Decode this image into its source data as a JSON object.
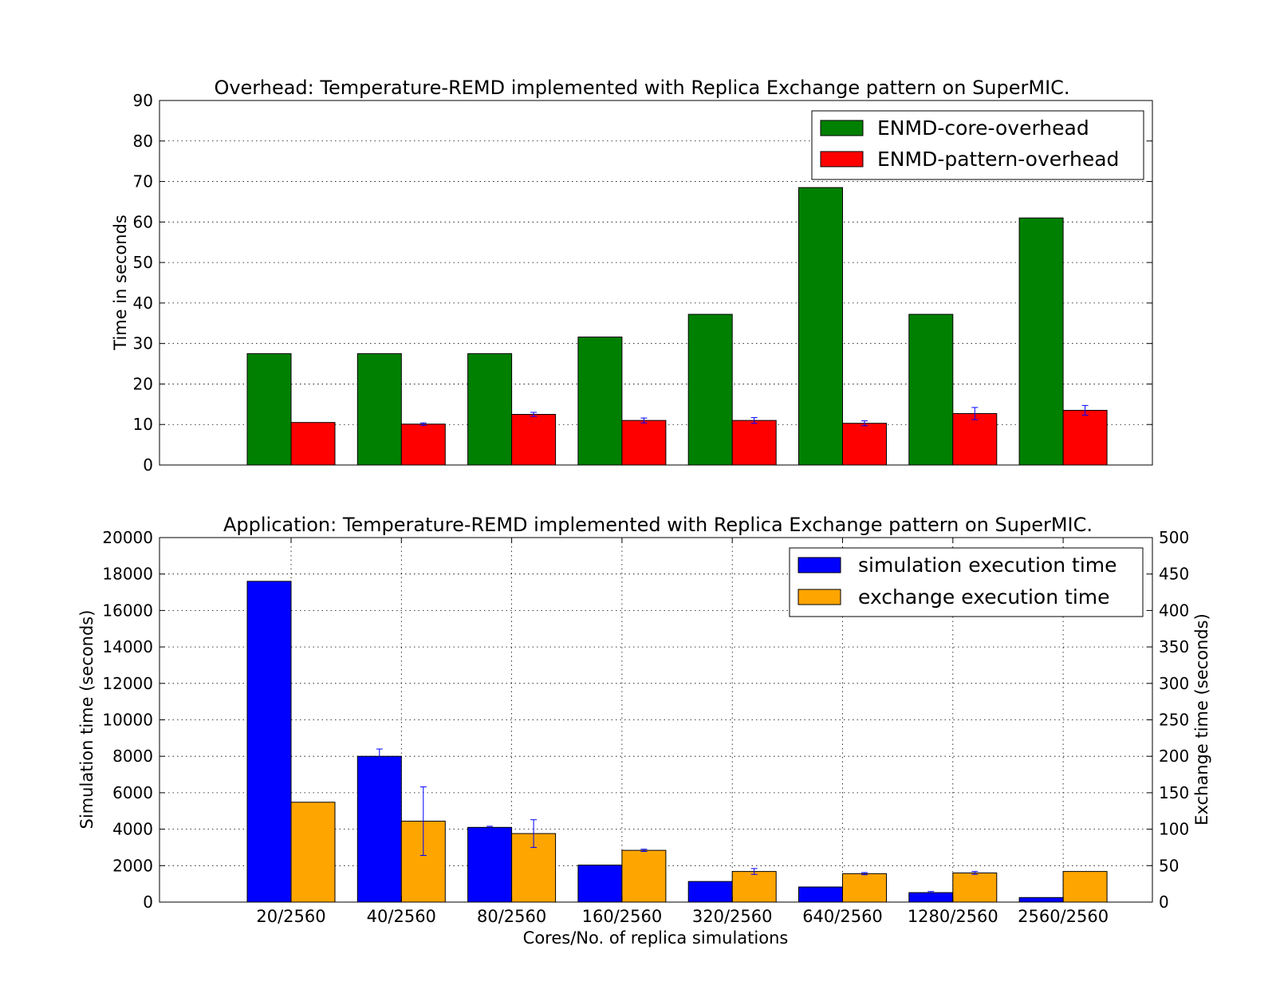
{
  "chart_data": [
    {
      "type": "bar",
      "title": "Overhead: Temperature-REMD implemented with Replica Exchange pattern on SuperMIC.",
      "ylabel": "Time in seconds",
      "xlabel": "",
      "categories": [
        "20/2560",
        "40/2560",
        "80/2560",
        "160/2560",
        "320/2560",
        "640/2560",
        "1280/2560",
        "2560/2560"
      ],
      "ylim": [
        0,
        90
      ],
      "yticks": [
        0,
        10,
        20,
        30,
        40,
        50,
        60,
        70,
        80,
        90
      ],
      "grid": true,
      "legend_position": "top-right",
      "series": [
        {
          "name": "ENMD-core-overhead",
          "color": "#008000",
          "values": [
            27.5,
            27.5,
            27.5,
            31.6,
            37.2,
            68.5,
            37.2,
            61.0
          ],
          "errors": [
            0,
            0,
            0,
            0,
            0,
            0,
            0,
            0
          ]
        },
        {
          "name": "ENMD-pattern-overhead",
          "color": "#ff0000",
          "values": [
            10.5,
            10.1,
            12.5,
            11.0,
            11.0,
            10.3,
            12.7,
            13.5
          ],
          "errors": [
            0,
            0.3,
            0.5,
            0.6,
            0.7,
            0.6,
            1.5,
            1.2
          ]
        }
      ]
    },
    {
      "type": "bar",
      "title": "Application: Temperature-REMD implemented with Replica Exchange pattern on SuperMIC.",
      "xlabel": "Cores/No. of replica simulations",
      "ylabel": "Simulation time (seconds)",
      "ylabel_right": "Exchange time (seconds)",
      "categories": [
        "20/2560",
        "40/2560",
        "80/2560",
        "160/2560",
        "320/2560",
        "640/2560",
        "1280/2560",
        "2560/2560"
      ],
      "ylim": [
        0,
        20000
      ],
      "ylim_right": [
        0,
        500
      ],
      "yticks": [
        0,
        2000,
        4000,
        6000,
        8000,
        10000,
        12000,
        14000,
        16000,
        18000,
        20000
      ],
      "yticks_right": [
        0,
        50,
        100,
        150,
        200,
        250,
        300,
        350,
        400,
        450,
        500
      ],
      "grid": true,
      "legend_position": "top-right",
      "series": [
        {
          "name": "simulation execution time",
          "color": "#0000ff",
          "axis": "left",
          "values": [
            17600,
            8000,
            4100,
            2030,
            1130,
            830,
            520,
            250
          ],
          "errors": [
            0,
            400,
            60,
            0,
            0,
            0,
            60,
            0
          ]
        },
        {
          "name": "exchange execution time",
          "color": "#ffa500",
          "axis": "right",
          "values": [
            137,
            111,
            94,
            71,
            42,
            39,
            40,
            42
          ],
          "errors": [
            0,
            47,
            19,
            1.5,
            4,
            1.5,
            2,
            0
          ]
        }
      ]
    }
  ],
  "colors": {
    "error_bar": "#0000ff",
    "edge": "#000000"
  }
}
